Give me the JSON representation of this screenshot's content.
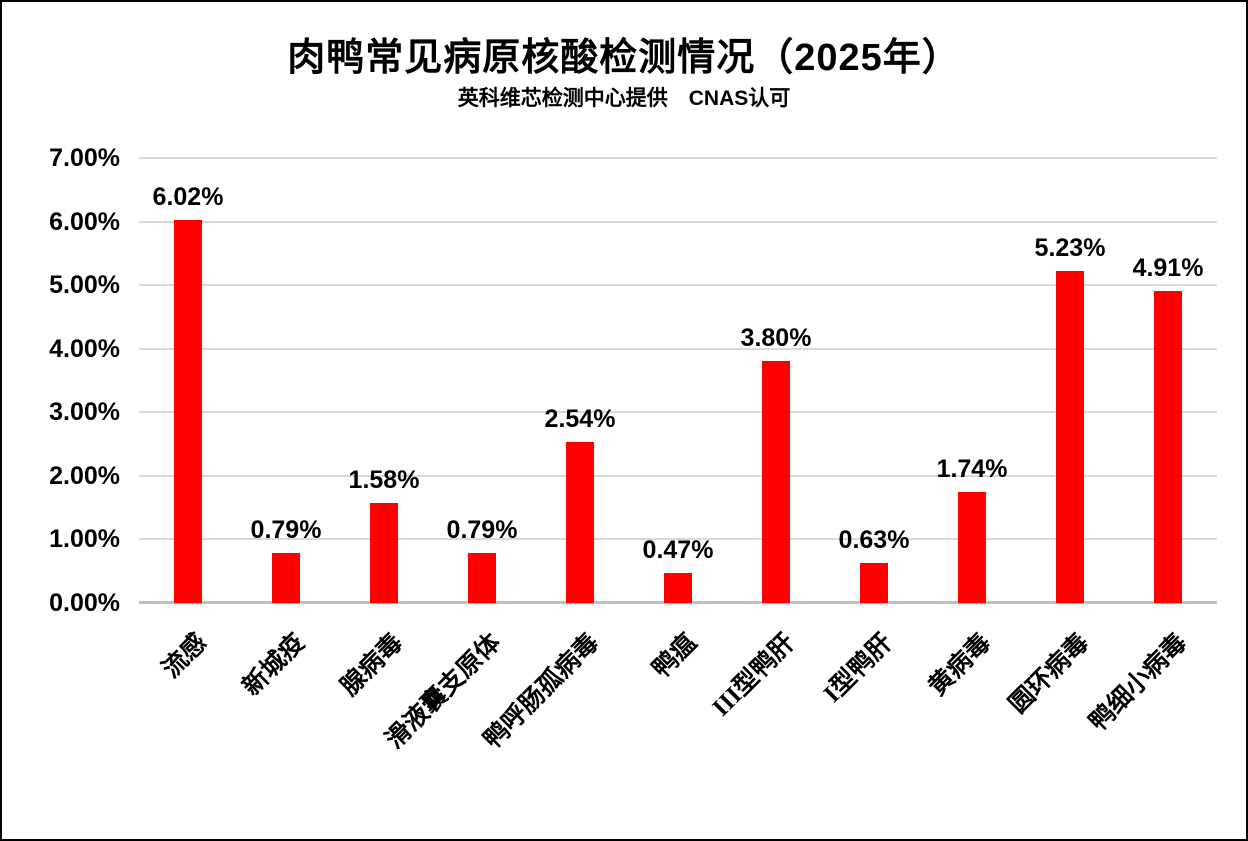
{
  "chart_data": {
    "type": "bar",
    "title": "肉鸭常见病原核酸检测情况（2025年）",
    "subtitle": "英科维芯检测中心提供　CNAS认可",
    "categories": [
      "流感",
      "新城疫",
      "腺病毒",
      "滑液囊支原体",
      "鸭呼肠孤病毒",
      "鸭瘟",
      "III型鸭肝",
      "I型鸭肝",
      "黄病毒",
      "圆环病毒",
      "鸭细小病毒"
    ],
    "values": [
      6.02,
      0.79,
      1.58,
      0.79,
      2.54,
      0.47,
      3.8,
      0.63,
      1.74,
      5.23,
      4.91
    ],
    "data_labels": [
      "6.02%",
      "0.79%",
      "1.58%",
      "0.79%",
      "2.54%",
      "0.47%",
      "3.80%",
      "0.63%",
      "1.74%",
      "5.23%",
      "4.91%"
    ],
    "ylim": [
      0,
      7
    ],
    "ytick_labels": [
      "7.00%",
      "6.00%",
      "5.00%",
      "4.00%",
      "3.00%",
      "2.00%",
      "1.00%",
      "0.00%"
    ],
    "xlabel": "",
    "ylabel": "",
    "bar_color": "#FF0000",
    "gridline_color": "#D9D9D9",
    "axis_line_color": "#BFBFBF",
    "text_color": "#000000",
    "grid": true,
    "legend": "none",
    "label_rotation_deg": -45
  }
}
